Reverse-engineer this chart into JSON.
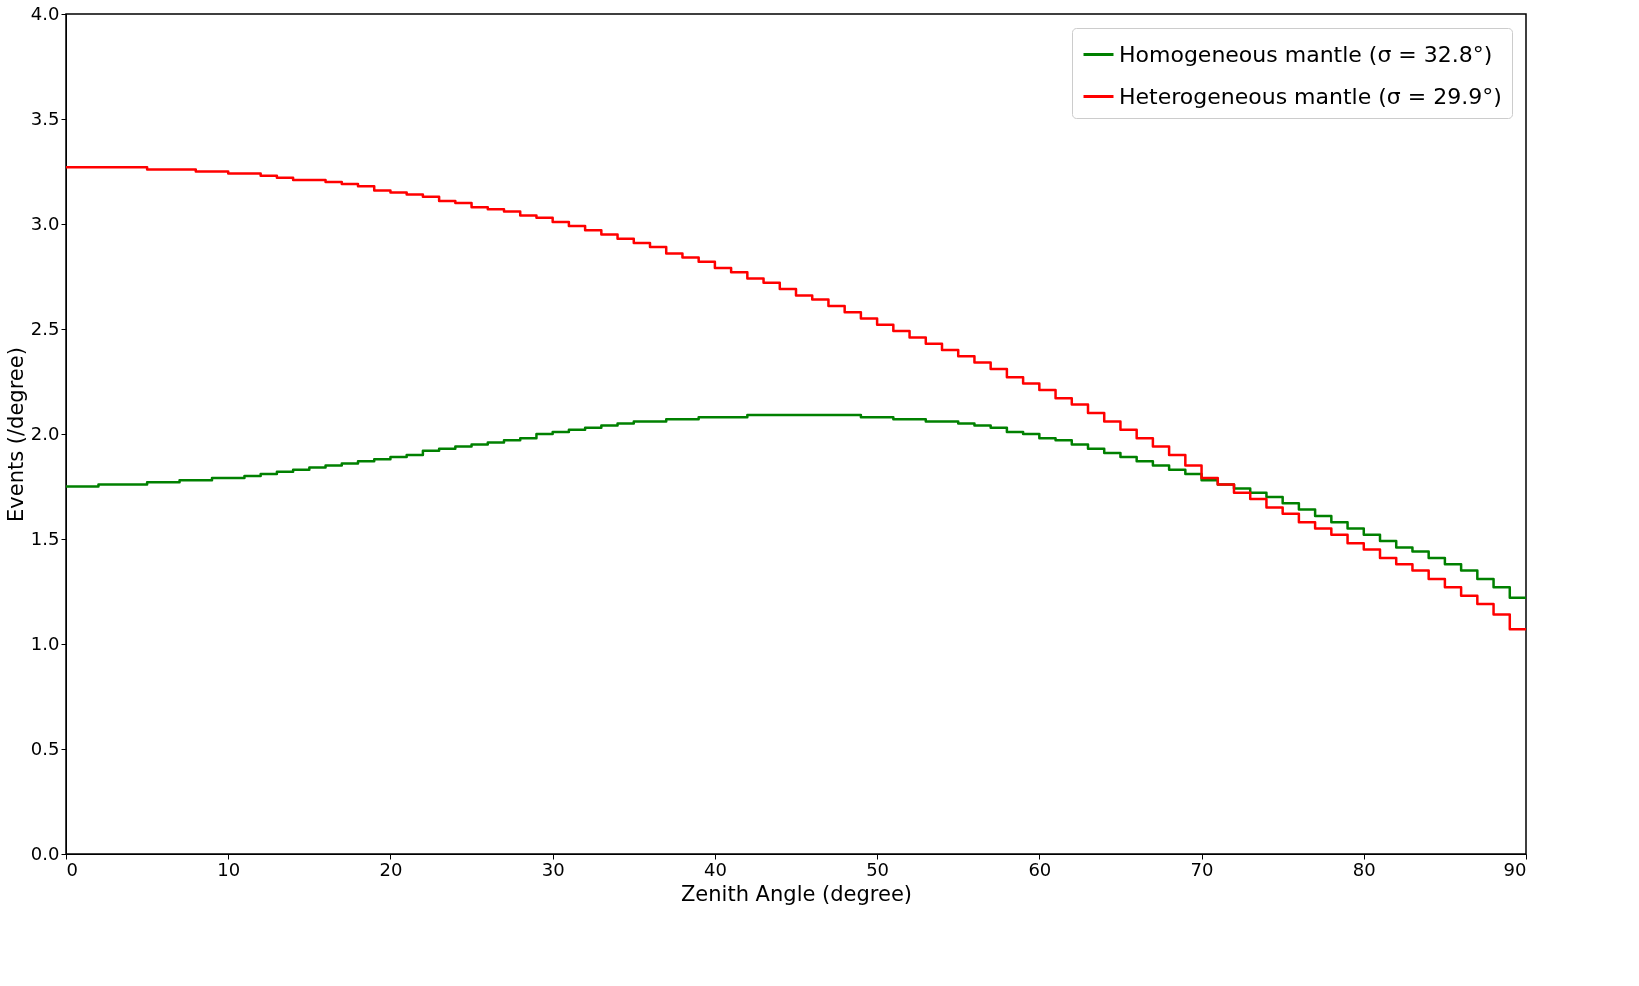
{
  "chart_data": {
    "type": "step",
    "xlabel": "Zenith Angle (degree)",
    "ylabel": "Events (/degree)",
    "x": [
      0,
      1,
      2,
      3,
      4,
      5,
      6,
      7,
      8,
      9,
      10,
      11,
      12,
      13,
      14,
      15,
      16,
      17,
      18,
      19,
      20,
      21,
      22,
      23,
      24,
      25,
      26,
      27,
      28,
      29,
      30,
      31,
      32,
      33,
      34,
      35,
      36,
      37,
      38,
      39,
      40,
      41,
      42,
      43,
      44,
      45,
      46,
      47,
      48,
      49,
      50,
      51,
      52,
      53,
      54,
      55,
      56,
      57,
      58,
      59,
      60,
      61,
      62,
      63,
      64,
      65,
      66,
      67,
      68,
      69,
      70,
      71,
      72,
      73,
      74,
      75,
      76,
      77,
      78,
      79,
      80,
      81,
      82,
      83,
      84,
      85,
      86,
      87,
      88,
      89,
      90
    ],
    "series": [
      {
        "name": "Homogeneous mantle (σ = 32.8°)",
        "color": "#008000",
        "values": [
          1.75,
          1.75,
          1.76,
          1.76,
          1.76,
          1.77,
          1.77,
          1.78,
          1.78,
          1.79,
          1.79,
          1.8,
          1.81,
          1.82,
          1.83,
          1.84,
          1.85,
          1.86,
          1.87,
          1.88,
          1.89,
          1.9,
          1.92,
          1.93,
          1.94,
          1.95,
          1.96,
          1.97,
          1.98,
          2.0,
          2.01,
          2.02,
          2.03,
          2.04,
          2.05,
          2.06,
          2.06,
          2.07,
          2.07,
          2.08,
          2.08,
          2.08,
          2.09,
          2.09,
          2.09,
          2.09,
          2.09,
          2.09,
          2.09,
          2.08,
          2.08,
          2.07,
          2.07,
          2.06,
          2.06,
          2.05,
          2.04,
          2.03,
          2.01,
          2.0,
          1.98,
          1.97,
          1.95,
          1.93,
          1.91,
          1.89,
          1.87,
          1.85,
          1.83,
          1.81,
          1.78,
          1.76,
          1.74,
          1.72,
          1.7,
          1.67,
          1.64,
          1.61,
          1.58,
          1.55,
          1.52,
          1.49,
          1.46,
          1.44,
          1.41,
          1.38,
          1.35,
          1.31,
          1.27,
          1.22,
          1.22
        ]
      },
      {
        "name": "Heterogeneous mantle (σ = 29.9°)",
        "color": "#ff0000",
        "values": [
          3.27,
          3.27,
          3.27,
          3.27,
          3.27,
          3.26,
          3.26,
          3.26,
          3.25,
          3.25,
          3.24,
          3.24,
          3.23,
          3.22,
          3.21,
          3.21,
          3.2,
          3.19,
          3.18,
          3.16,
          3.15,
          3.14,
          3.13,
          3.11,
          3.1,
          3.08,
          3.07,
          3.06,
          3.04,
          3.03,
          3.01,
          2.99,
          2.97,
          2.95,
          2.93,
          2.91,
          2.89,
          2.86,
          2.84,
          2.82,
          2.79,
          2.77,
          2.74,
          2.72,
          2.69,
          2.66,
          2.64,
          2.61,
          2.58,
          2.55,
          2.52,
          2.49,
          2.46,
          2.43,
          2.4,
          2.37,
          2.34,
          2.31,
          2.27,
          2.24,
          2.21,
          2.17,
          2.14,
          2.1,
          2.06,
          2.02,
          1.98,
          1.94,
          1.9,
          1.85,
          1.79,
          1.76,
          1.72,
          1.69,
          1.65,
          1.62,
          1.58,
          1.55,
          1.52,
          1.48,
          1.45,
          1.41,
          1.38,
          1.35,
          1.31,
          1.27,
          1.23,
          1.19,
          1.14,
          1.07,
          1.07
        ]
      }
    ],
    "xlim": [
      0,
      90
    ],
    "xticks": [
      0,
      10,
      20,
      30,
      40,
      50,
      60,
      70,
      80,
      90
    ],
    "ylim": [
      0,
      4
    ],
    "yticks": [
      {
        "value": 0,
        "label": "0.0"
      },
      0.5,
      {
        "value": 1,
        "label": "1.0"
      },
      1.5,
      {
        "value": 2,
        "label": "2.0"
      },
      2.5,
      {
        "value": 3,
        "label": "3.0"
      },
      3.5,
      {
        "value": 4,
        "label": "4.0"
      }
    ],
    "legend": "top right",
    "grid": false
  }
}
